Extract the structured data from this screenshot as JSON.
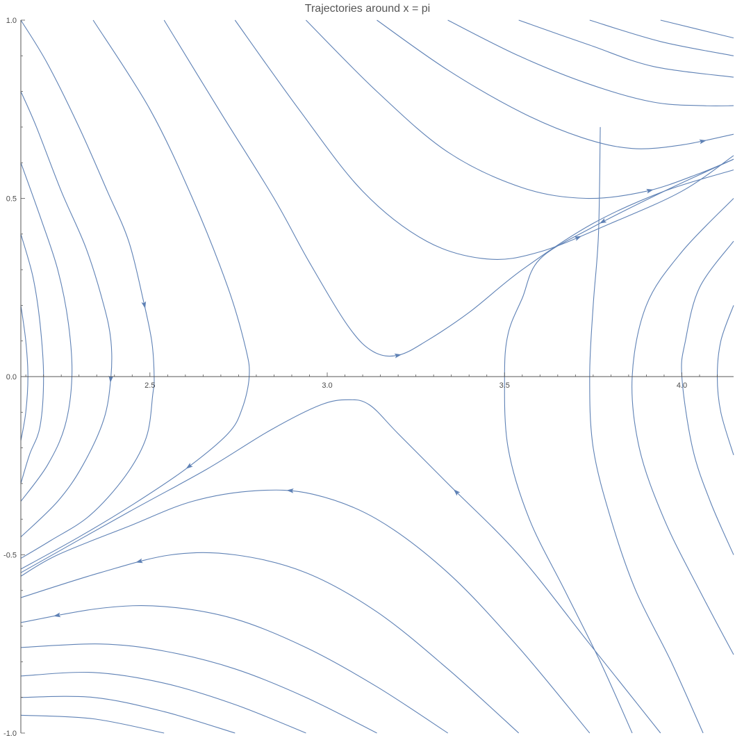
{
  "chart_data": {
    "type": "streamplot",
    "title": "Trajectories around x = pi",
    "xlabel": "",
    "ylabel": "",
    "xlim": [
      2.136,
      4.146
    ],
    "ylim": [
      -1.0,
      1.0
    ],
    "x_ticks": [
      2.5,
      3.0,
      3.5,
      4.0
    ],
    "x_tick_labels": [
      "2.5",
      "3.0",
      "3.5",
      "4.0"
    ],
    "y_ticks": [
      1.0,
      0.5,
      0.0,
      -0.5,
      -1.0
    ],
    "y_tick_labels": [
      "1.0",
      "0.5",
      "0.0",
      "-0.5",
      "-1.0"
    ],
    "axis_origin": [
      2.136,
      0.0
    ],
    "line_color": "#5e81b5",
    "axis_color": "#555555",
    "grid": false,
    "legend": "none",
    "series": [
      {
        "points": [
          [
            2.136,
            1.0
          ],
          [
            2.21,
            0.88
          ],
          [
            2.3,
            0.7
          ],
          [
            2.38,
            0.52
          ],
          [
            2.44,
            0.38
          ],
          [
            2.48,
            0.22
          ],
          [
            2.505,
            0.1
          ],
          [
            2.512,
            0.0
          ],
          [
            2.508,
            -0.05
          ],
          [
            2.49,
            -0.17
          ],
          [
            2.43,
            -0.28
          ],
          [
            2.33,
            -0.39
          ],
          [
            2.22,
            -0.46
          ],
          [
            2.136,
            -0.51
          ]
        ],
        "arrows": [
          0.5
        ]
      },
      {
        "points": [
          [
            2.136,
            0.8
          ],
          [
            2.18,
            0.7
          ],
          [
            2.25,
            0.52
          ],
          [
            2.32,
            0.36
          ],
          [
            2.37,
            0.2
          ],
          [
            2.39,
            0.1
          ],
          [
            2.39,
            0.0
          ],
          [
            2.37,
            -0.12
          ],
          [
            2.31,
            -0.25
          ],
          [
            2.24,
            -0.35
          ],
          [
            2.136,
            -0.45
          ]
        ],
        "arrows": [
          0.62
        ]
      },
      {
        "points": [
          [
            2.136,
            0.6
          ],
          [
            2.19,
            0.45
          ],
          [
            2.24,
            0.3
          ],
          [
            2.27,
            0.15
          ],
          [
            2.28,
            0.0
          ],
          [
            2.26,
            -0.14
          ],
          [
            2.21,
            -0.25
          ],
          [
            2.136,
            -0.35
          ]
        ],
        "arrows": []
      },
      {
        "points": [
          [
            2.136,
            0.4
          ],
          [
            2.17,
            0.28
          ],
          [
            2.19,
            0.15
          ],
          [
            2.2,
            0.0
          ],
          [
            2.19,
            -0.14
          ],
          [
            2.16,
            -0.22
          ],
          [
            2.136,
            -0.3
          ]
        ],
        "arrows": []
      },
      {
        "points": [
          [
            2.136,
            0.2
          ],
          [
            2.15,
            0.1
          ],
          [
            2.156,
            0.0
          ],
          [
            2.15,
            -0.1
          ],
          [
            2.136,
            -0.18
          ]
        ],
        "arrows": []
      },
      {
        "points": [
          [
            2.34,
            1.0
          ],
          [
            2.5,
            0.75
          ],
          [
            2.62,
            0.5
          ],
          [
            2.72,
            0.25
          ],
          [
            2.77,
            0.08
          ],
          [
            2.78,
            0.0
          ],
          [
            2.76,
            -0.09
          ],
          [
            2.72,
            -0.16
          ],
          [
            2.6,
            -0.26
          ],
          [
            2.45,
            -0.36
          ],
          [
            2.3,
            -0.45
          ],
          [
            2.136,
            -0.54
          ]
        ],
        "arrows": [
          0.72
        ]
      },
      {
        "points": [
          [
            2.54,
            1.0
          ],
          [
            2.7,
            0.74
          ],
          [
            2.85,
            0.5
          ],
          [
            2.95,
            0.32
          ],
          [
            3.06,
            0.14
          ],
          [
            3.13,
            0.07
          ],
          [
            3.2,
            0.06
          ],
          [
            3.28,
            0.1
          ],
          [
            3.4,
            0.18
          ],
          [
            3.55,
            0.3
          ],
          [
            3.75,
            0.43
          ],
          [
            3.95,
            0.52
          ],
          [
            4.146,
            0.58
          ]
        ],
        "arrows": [
          0.52
        ]
      },
      {
        "points": [
          [
            2.74,
            1.0
          ],
          [
            2.92,
            0.75
          ],
          [
            3.1,
            0.52
          ],
          [
            3.28,
            0.38
          ],
          [
            3.45,
            0.33
          ],
          [
            3.6,
            0.35
          ],
          [
            3.8,
            0.43
          ],
          [
            4.0,
            0.52
          ],
          [
            4.146,
            0.62
          ]
        ],
        "arrows": [
          0.72
        ]
      },
      {
        "points": [
          [
            2.94,
            1.0
          ],
          [
            3.14,
            0.8
          ],
          [
            3.34,
            0.63
          ],
          [
            3.55,
            0.53
          ],
          [
            3.73,
            0.5
          ],
          [
            3.9,
            0.52
          ],
          [
            4.05,
            0.57
          ],
          [
            4.146,
            0.61
          ]
        ],
        "arrows": [
          0.82
        ]
      },
      {
        "points": [
          [
            3.14,
            1.0
          ],
          [
            3.34,
            0.86
          ],
          [
            3.55,
            0.74
          ],
          [
            3.72,
            0.67
          ],
          [
            3.86,
            0.64
          ],
          [
            4.0,
            0.65
          ],
          [
            4.146,
            0.68
          ]
        ],
        "arrows": [
          0.92
        ]
      },
      {
        "points": [
          [
            3.34,
            1.0
          ],
          [
            3.54,
            0.9
          ],
          [
            3.74,
            0.82
          ],
          [
            3.92,
            0.77
          ],
          [
            4.06,
            0.76
          ],
          [
            4.146,
            0.76
          ]
        ],
        "arrows": []
      },
      {
        "points": [
          [
            3.54,
            1.0
          ],
          [
            3.74,
            0.93
          ],
          [
            3.92,
            0.87
          ],
          [
            4.146,
            0.84
          ]
        ],
        "arrows": []
      },
      {
        "points": [
          [
            3.74,
            1.0
          ],
          [
            3.94,
            0.94
          ],
          [
            4.146,
            0.9
          ]
        ],
        "arrows": []
      },
      {
        "points": [
          [
            3.94,
            1.0
          ],
          [
            4.146,
            0.95
          ]
        ],
        "arrows": []
      },
      {
        "points": [
          [
            4.146,
            0.61
          ],
          [
            3.95,
            0.52
          ],
          [
            3.75,
            0.42
          ],
          [
            3.6,
            0.33
          ],
          [
            3.55,
            0.22
          ],
          [
            3.51,
            0.12
          ],
          [
            3.5,
            0.0
          ],
          [
            3.51,
            -0.2
          ],
          [
            3.57,
            -0.4
          ],
          [
            3.67,
            -0.6
          ],
          [
            3.77,
            -0.8
          ],
          [
            3.86,
            -1.0
          ]
        ],
        "arrows": [
          0.2
        ]
      },
      {
        "points": [
          [
            3.77,
            0.7
          ],
          [
            3.765,
            0.4
          ],
          [
            3.75,
            0.2
          ],
          [
            3.74,
            0.0
          ],
          [
            3.75,
            -0.2
          ],
          [
            3.8,
            -0.4
          ],
          [
            3.87,
            -0.6
          ],
          [
            3.97,
            -0.8
          ],
          [
            4.06,
            -1.0
          ]
        ],
        "arrows": []
      },
      {
        "points": [
          [
            4.146,
            0.5
          ],
          [
            4.0,
            0.35
          ],
          [
            3.9,
            0.2
          ],
          [
            3.86,
            0.0
          ],
          [
            3.88,
            -0.2
          ],
          [
            3.95,
            -0.4
          ],
          [
            4.05,
            -0.6
          ],
          [
            4.146,
            -0.78
          ]
        ],
        "arrows": []
      },
      {
        "points": [
          [
            4.146,
            0.38
          ],
          [
            4.05,
            0.25
          ],
          [
            4.01,
            0.1
          ],
          [
            4.0,
            0.0
          ],
          [
            4.03,
            -0.2
          ],
          [
            4.08,
            -0.35
          ],
          [
            4.146,
            -0.5
          ]
        ],
        "arrows": []
      },
      {
        "points": [
          [
            4.146,
            0.2
          ],
          [
            4.11,
            0.1
          ],
          [
            4.1,
            0.0
          ],
          [
            4.11,
            -0.1
          ],
          [
            4.146,
            -0.22
          ]
        ],
        "arrows": []
      },
      {
        "points": [
          [
            3.94,
            -1.0
          ],
          [
            3.74,
            -0.75
          ],
          [
            3.54,
            -0.5
          ],
          [
            3.34,
            -0.3
          ],
          [
            3.2,
            -0.16
          ],
          [
            3.12,
            -0.08
          ],
          [
            3.06,
            -0.065
          ],
          [
            2.98,
            -0.08
          ],
          [
            2.84,
            -0.15
          ],
          [
            2.66,
            -0.26
          ],
          [
            2.44,
            -0.38
          ],
          [
            2.136,
            -0.55
          ]
        ],
        "arrows": [
          0.38
        ]
      },
      {
        "points": [
          [
            3.74,
            -1.0
          ],
          [
            3.54,
            -0.76
          ],
          [
            3.34,
            -0.55
          ],
          [
            3.14,
            -0.4
          ],
          [
            2.96,
            -0.33
          ],
          [
            2.8,
            -0.32
          ],
          [
            2.62,
            -0.35
          ],
          [
            2.44,
            -0.42
          ],
          [
            2.24,
            -0.5
          ],
          [
            2.136,
            -0.56
          ]
        ],
        "arrows": [
          0.58
        ]
      },
      {
        "points": [
          [
            3.54,
            -1.0
          ],
          [
            3.34,
            -0.82
          ],
          [
            3.14,
            -0.66
          ],
          [
            2.94,
            -0.55
          ],
          [
            2.74,
            -0.5
          ],
          [
            2.56,
            -0.5
          ],
          [
            2.36,
            -0.55
          ],
          [
            2.136,
            -0.62
          ]
        ],
        "arrows": [
          0.78
        ]
      },
      {
        "points": [
          [
            3.34,
            -1.0
          ],
          [
            3.14,
            -0.87
          ],
          [
            2.94,
            -0.76
          ],
          [
            2.74,
            -0.68
          ],
          [
            2.54,
            -0.645
          ],
          [
            2.36,
            -0.65
          ],
          [
            2.136,
            -0.69
          ]
        ],
        "arrows": [
          0.92
        ]
      },
      {
        "points": [
          [
            3.14,
            -1.0
          ],
          [
            2.94,
            -0.9
          ],
          [
            2.74,
            -0.82
          ],
          [
            2.54,
            -0.77
          ],
          [
            2.36,
            -0.75
          ],
          [
            2.136,
            -0.76
          ]
        ],
        "arrows": []
      },
      {
        "points": [
          [
            2.94,
            -1.0
          ],
          [
            2.74,
            -0.92
          ],
          [
            2.54,
            -0.86
          ],
          [
            2.34,
            -0.83
          ],
          [
            2.136,
            -0.84
          ]
        ],
        "arrows": []
      },
      {
        "points": [
          [
            2.74,
            -1.0
          ],
          [
            2.54,
            -0.94
          ],
          [
            2.34,
            -0.9
          ],
          [
            2.136,
            -0.9
          ]
        ],
        "arrows": []
      },
      {
        "points": [
          [
            2.54,
            -1.0
          ],
          [
            2.34,
            -0.96
          ],
          [
            2.136,
            -0.95
          ]
        ],
        "arrows": []
      }
    ]
  }
}
